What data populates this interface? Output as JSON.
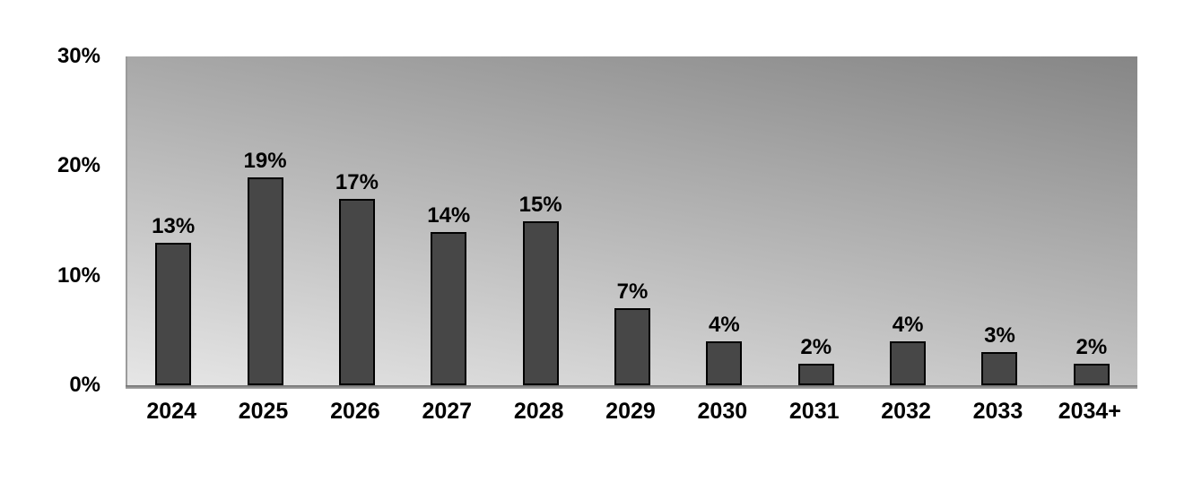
{
  "chart_data": {
    "type": "bar",
    "title": "",
    "xlabel": "",
    "ylabel": "",
    "categories": [
      "2024",
      "2025",
      "2026",
      "2027",
      "2028",
      "2029",
      "2030",
      "2031",
      "2032",
      "2033",
      "2034+"
    ],
    "values": [
      13,
      19,
      17,
      14,
      15,
      7,
      4,
      2,
      4,
      3,
      2
    ],
    "value_labels": [
      "13%",
      "19%",
      "17%",
      "14%",
      "15%",
      "7%",
      "4%",
      "2%",
      "4%",
      "3%",
      "2%"
    ],
    "ylim": [
      0,
      30
    ],
    "yticks": [
      {
        "value": 30,
        "label": "30%"
      },
      {
        "value": 20,
        "label": "20%"
      },
      {
        "value": 10,
        "label": "10%"
      },
      {
        "value": 0,
        "label": "0%"
      }
    ],
    "grid": false,
    "legend": null,
    "colors": {
      "bar_fill": "#474747",
      "bar_border": "#000000",
      "plot_bg_light": "#e6e6e6",
      "plot_bg_dark": "#868686",
      "axis_line": "#9b9b9b",
      "text": "#000000",
      "page_bg": "#ffffff"
    }
  }
}
